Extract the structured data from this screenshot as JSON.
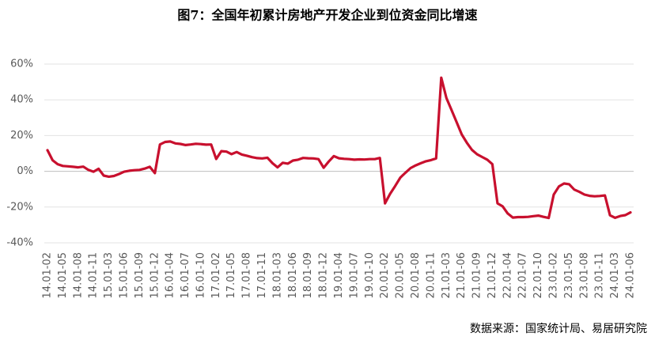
{
  "chart_data": {
    "type": "line",
    "title": "图7：全国年初累计房地产开发企业到位资金同比增速",
    "source": "数据来源：国家统计局、易居研究院",
    "categories": [
      "14.01-02",
      null,
      null,
      "14.01-05",
      null,
      null,
      "14.01-08",
      null,
      null,
      "14.01-11",
      null,
      null,
      "15.01-03",
      null,
      null,
      "15.01-06",
      null,
      null,
      "15.01-09",
      null,
      null,
      "15.01-12",
      null,
      null,
      "16.01-04",
      null,
      null,
      "16.01-07",
      null,
      null,
      "16.01-10",
      null,
      null,
      "17.01-02",
      null,
      null,
      "17.01-05",
      null,
      null,
      "17.01-08",
      null,
      null,
      "17.01-11",
      null,
      null,
      "18.01-03",
      null,
      null,
      "18.01-06",
      null,
      null,
      "18.01-09",
      null,
      null,
      "18.01-12",
      null,
      null,
      "19.01-04",
      null,
      null,
      "19.01-07",
      null,
      null,
      "19.01-10",
      null,
      null,
      "20.01-02",
      null,
      null,
      "20.01-05",
      null,
      null,
      "20.01-08",
      null,
      null,
      "20.01-11",
      null,
      null,
      "21.01-03",
      null,
      null,
      "21.01-06",
      null,
      null,
      "21.01-09",
      null,
      null,
      "21.01-12",
      null,
      null,
      "22.01-04",
      null,
      null,
      "22.01-07",
      null,
      null,
      "22.01-10",
      null,
      null,
      "23.01-02",
      null,
      null,
      "23.01-05",
      null,
      null,
      "23.01-08",
      null,
      null,
      "23.01-11",
      null,
      null,
      "24.01-03",
      null,
      null,
      "24.01-06"
    ],
    "series": [
      {
        "color": "#c8102e",
        "values": [
          11.8,
          6.2,
          4.0,
          3.0,
          2.8,
          2.5,
          2.2,
          2.6,
          0.8,
          -0.2,
          1.4,
          -2.4,
          -3.0,
          -2.6,
          -1.5,
          -0.2,
          0.3,
          0.6,
          0.8,
          1.5,
          2.5,
          -1.0,
          15.0,
          16.4,
          16.7,
          15.6,
          15.3,
          14.7,
          15.0,
          15.4,
          15.2,
          14.9,
          15.0,
          6.9,
          11.3,
          11.0,
          9.6,
          10.8,
          9.4,
          8.7,
          7.9,
          7.4,
          7.2,
          7.6,
          4.5,
          2.2,
          4.8,
          4.3,
          6.0,
          6.5,
          7.5,
          7.3,
          7.2,
          6.8,
          2.0,
          5.5,
          8.5,
          7.3,
          7.0,
          6.8,
          6.5,
          6.7,
          6.6,
          6.8,
          6.8,
          7.5,
          -17.9,
          -12.6,
          -8.2,
          -3.5,
          -0.8,
          1.8,
          3.3,
          4.5,
          5.6,
          6.3,
          7.2,
          52.4,
          41.0,
          34.4,
          27.5,
          20.6,
          16.0,
          12.0,
          9.5,
          8.0,
          6.5,
          4.0,
          -17.9,
          -19.6,
          -23.6,
          -25.9,
          -25.6,
          -25.6,
          -25.5,
          -25.1,
          -24.8,
          -25.5,
          -26.1,
          -13.0,
          -8.5,
          -6.8,
          -7.2,
          -10.2,
          -11.5,
          -13.0,
          -13.7,
          -14.0,
          -13.8,
          -13.5,
          -24.6,
          -26.0,
          -25.0,
          -24.5,
          -23.0
        ]
      }
    ],
    "ylim": [
      -40,
      60
    ],
    "yticks": [
      {
        "value": -40,
        "label": "-40%"
      },
      {
        "value": -20,
        "label": "-20%"
      },
      {
        "value": 0,
        "label": "0%"
      },
      {
        "value": 20,
        "label": "20%"
      },
      {
        "value": 40,
        "label": "40%"
      },
      {
        "value": 60,
        "label": "60%"
      }
    ],
    "grid": true
  }
}
